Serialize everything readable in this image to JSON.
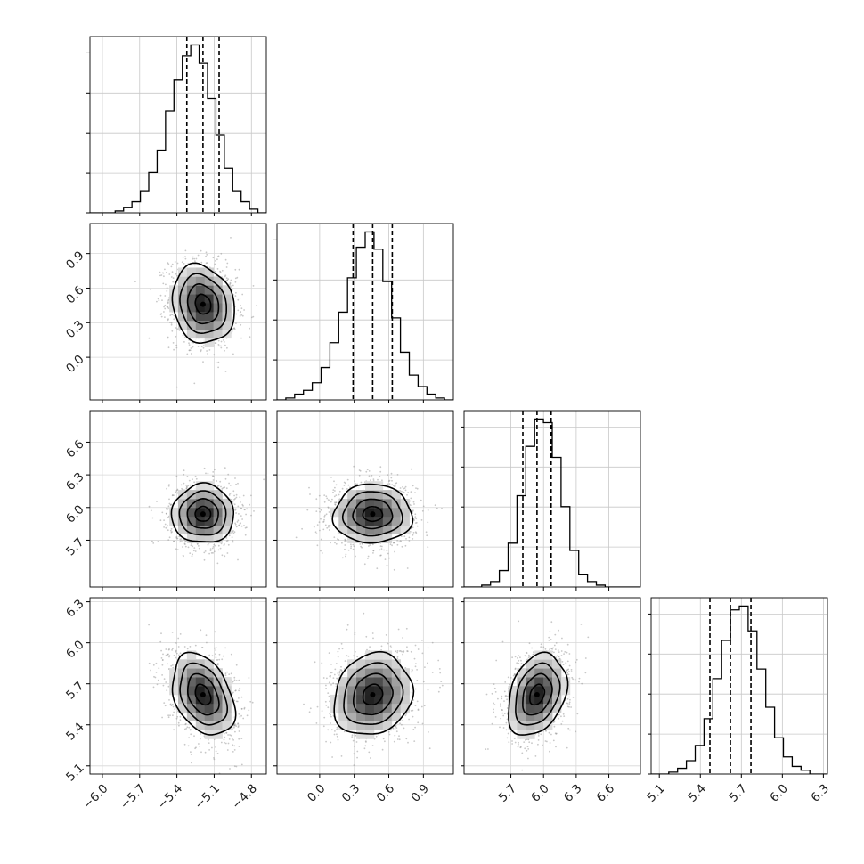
{
  "chart_data": {
    "type": "corner",
    "title": "",
    "grid": true,
    "quantile_lines": [
      0.16,
      0.5,
      0.84
    ],
    "parameters": [
      {
        "index": 0,
        "mean": -5.19,
        "std": 0.125,
        "range": [
          -6.1,
          -4.68
        ],
        "ticks": [
          -6.0,
          -5.7,
          -5.4,
          -5.1,
          -4.8
        ],
        "tick_labels": [
          "−6.0",
          "−5.7",
          "−5.4",
          "−5.1",
          "−4.8"
        ],
        "quantiles": [
          -5.32,
          -5.19,
          -5.06
        ]
      },
      {
        "index": 1,
        "mean": 0.46,
        "std": 0.17,
        "range": [
          -0.37,
          1.16
        ],
        "ticks": [
          0.0,
          0.3,
          0.6,
          0.9
        ],
        "tick_labels": [
          "0.0",
          "0.3",
          "0.6",
          "0.9"
        ],
        "quantiles": [
          0.29,
          0.46,
          0.63
        ]
      },
      {
        "index": 2,
        "mean": 5.94,
        "std": 0.135,
        "range": [
          5.27,
          6.89
        ],
        "ticks": [
          5.7,
          6.0,
          6.3,
          6.6
        ],
        "tick_labels": [
          "5.7",
          "6.0",
          "6.3",
          "6.6"
        ],
        "quantiles": [
          5.81,
          5.94,
          6.07
        ]
      },
      {
        "index": 3,
        "mean": 5.62,
        "std": 0.15,
        "range": [
          5.04,
          6.33
        ],
        "ticks": [
          5.1,
          5.4,
          5.7,
          6.0,
          6.3
        ],
        "tick_labels": [
          "5.1",
          "5.4",
          "5.7",
          "6.0",
          "6.3"
        ],
        "quantiles": [
          5.47,
          5.62,
          5.77
        ]
      }
    ],
    "correlations": [
      {
        "pair": [
          1,
          0
        ],
        "rho": -0.15
      },
      {
        "pair": [
          2,
          0
        ],
        "rho": 0.0
      },
      {
        "pair": [
          2,
          1
        ],
        "rho": 0.0
      },
      {
        "pair": [
          3,
          0
        ],
        "rho": -0.35
      },
      {
        "pair": [
          3,
          1
        ],
        "rho": 0.15
      },
      {
        "pair": [
          3,
          2
        ],
        "rho": 0.3
      }
    ],
    "histograms": [
      {
        "param": 0,
        "bins": [
          -6.1,
          -4.68
        ],
        "counts": [
          0,
          0,
          0,
          1,
          3,
          6,
          12,
          22,
          34,
          55,
          72,
          85,
          91,
          81,
          62,
          42,
          24,
          12,
          6,
          2,
          0
        ]
      },
      {
        "param": 1,
        "bins": [
          -0.37,
          1.16
        ],
        "counts": [
          0,
          1,
          3,
          5,
          9,
          17,
          30,
          46,
          64,
          80,
          88,
          79,
          62,
          43,
          25,
          13,
          7,
          3,
          1,
          0
        ]
      },
      {
        "param": 2,
        "bins": [
          5.27,
          6.89
        ],
        "counts": [
          0,
          0,
          1,
          3,
          9,
          24,
          50,
          77,
          92,
          90,
          71,
          44,
          20,
          7,
          3,
          1,
          0,
          0,
          0,
          0
        ]
      },
      {
        "param": 3,
        "bins": [
          5.04,
          6.33
        ],
        "counts": [
          0,
          0,
          1,
          3,
          7,
          15,
          29,
          50,
          70,
          86,
          88,
          75,
          55,
          35,
          19,
          9,
          4,
          2,
          0,
          0
        ]
      }
    ]
  }
}
